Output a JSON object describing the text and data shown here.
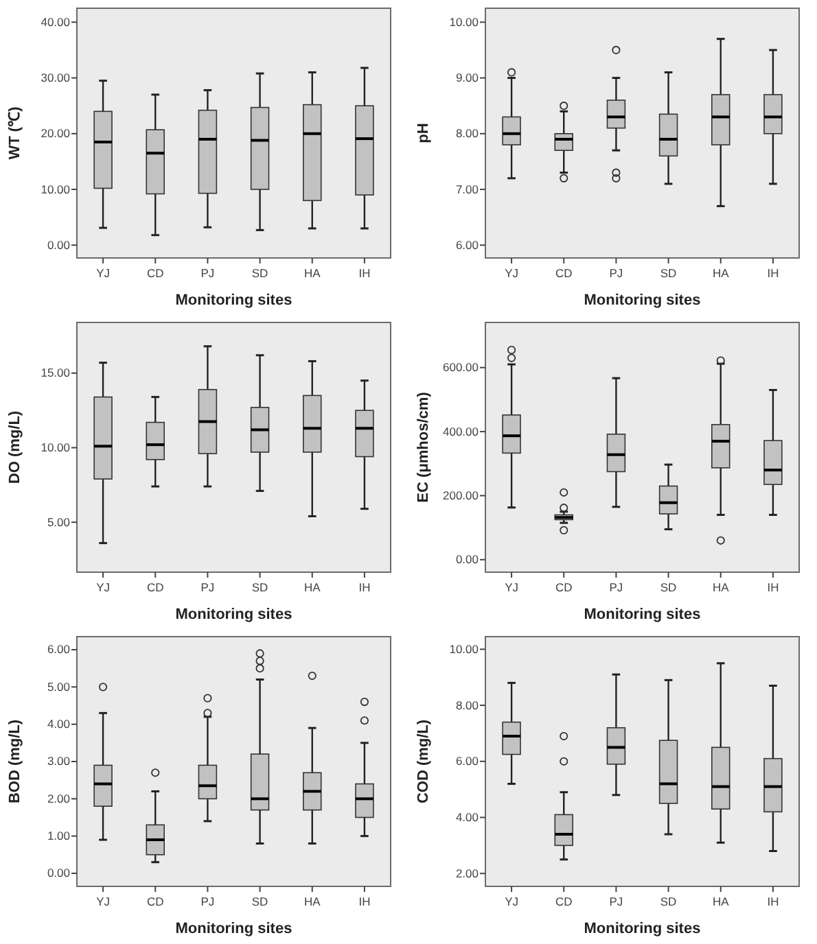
{
  "chart_data": [
    {
      "type": "box",
      "xlabel": "Monitoring sites",
      "ylabel": "WT (℃)",
      "categories": [
        "YJ",
        "CD",
        "PJ",
        "SD",
        "HA",
        "IH"
      ],
      "ylim": [
        -2.3,
        42.5
      ],
      "yticks": [
        {
          "value": 0,
          "label": "0.00"
        },
        {
          "value": 10,
          "label": "10.00"
        },
        {
          "value": 20,
          "label": "20.00"
        },
        {
          "value": 30,
          "label": "30.00"
        },
        {
          "value": 40,
          "label": "40.00"
        }
      ],
      "boxes": [
        {
          "low": 3.1,
          "q1": 10.2,
          "median": 18.5,
          "q3": 24,
          "high": 29.5
        },
        {
          "low": 1.8,
          "q1": 9.2,
          "median": 16.5,
          "q3": 20.7,
          "high": 27
        },
        {
          "low": 3.2,
          "q1": 9.3,
          "median": 19,
          "q3": 24.2,
          "high": 27.8
        },
        {
          "low": 2.7,
          "q1": 10,
          "median": 18.8,
          "q3": 24.7,
          "high": 30.8
        },
        {
          "low": 3,
          "q1": 8,
          "median": 20,
          "q3": 25.2,
          "high": 31
        },
        {
          "low": 3,
          "q1": 9,
          "median": 19.1,
          "q3": 25,
          "high": 31.8
        }
      ]
    },
    {
      "type": "box",
      "xlabel": "Monitoring sites",
      "ylabel": "pH",
      "categories": [
        "YJ",
        "CD",
        "PJ",
        "SD",
        "HA",
        "IH"
      ],
      "ylim": [
        5.77,
        10.25
      ],
      "yticks": [
        {
          "value": 6,
          "label": "6.00"
        },
        {
          "value": 7,
          "label": "7.00"
        },
        {
          "value": 8,
          "label": "8.00"
        },
        {
          "value": 9,
          "label": "9.00"
        },
        {
          "value": 10,
          "label": "10.00"
        }
      ],
      "boxes": [
        {
          "low": 7.2,
          "q1": 7.8,
          "median": 8,
          "q3": 8.3,
          "high": 9,
          "outliers": [
            9.1
          ]
        },
        {
          "low": 7.3,
          "q1": 7.7,
          "median": 7.9,
          "q3": 8,
          "high": 8.4,
          "outliers": [
            7.2,
            8.5
          ]
        },
        {
          "low": 7.7,
          "q1": 8.1,
          "median": 8.3,
          "q3": 8.6,
          "high": 9,
          "outliers": [
            9.5,
            7.3,
            7.2
          ]
        },
        {
          "low": 7.1,
          "q1": 7.6,
          "median": 7.9,
          "q3": 8.35,
          "high": 9.1
        },
        {
          "low": 6.7,
          "q1": 7.8,
          "median": 8.3,
          "q3": 8.7,
          "high": 9.7
        },
        {
          "low": 7.1,
          "q1": 8,
          "median": 8.3,
          "q3": 8.7,
          "high": 9.5
        }
      ]
    },
    {
      "type": "box",
      "xlabel": "Monitoring sites",
      "ylabel": "DO (mg/L)",
      "categories": [
        "YJ",
        "CD",
        "PJ",
        "SD",
        "HA",
        "IH"
      ],
      "ylim": [
        1.65,
        18.4
      ],
      "yticks": [
        {
          "value": 5,
          "label": "5.00"
        },
        {
          "value": 10,
          "label": "10.00"
        },
        {
          "value": 15,
          "label": "15.00"
        }
      ],
      "boxes": [
        {
          "low": 3.6,
          "q1": 7.9,
          "median": 10.1,
          "q3": 13.4,
          "high": 15.7
        },
        {
          "low": 7.4,
          "q1": 9.2,
          "median": 10.2,
          "q3": 11.7,
          "high": 13.4
        },
        {
          "low": 7.4,
          "q1": 9.6,
          "median": 11.75,
          "q3": 13.9,
          "high": 16.8
        },
        {
          "low": 7.1,
          "q1": 9.7,
          "median": 11.2,
          "q3": 12.7,
          "high": 16.2
        },
        {
          "low": 5.4,
          "q1": 9.7,
          "median": 11.3,
          "q3": 13.5,
          "high": 15.8
        },
        {
          "low": 5.9,
          "q1": 9.4,
          "median": 11.3,
          "q3": 12.5,
          "high": 14.5
        }
      ]
    },
    {
      "type": "box",
      "xlabel": "Monitoring sites",
      "ylabel": "EC (μmhos/cm)",
      "categories": [
        "YJ",
        "CD",
        "PJ",
        "SD",
        "HA",
        "IH"
      ],
      "ylim": [
        -39,
        741
      ],
      "yticks": [
        {
          "value": 0,
          "label": "0.00"
        },
        {
          "value": 200,
          "label": "200.00"
        },
        {
          "value": 400,
          "label": "400.00"
        },
        {
          "value": 600,
          "label": "600.00"
        }
      ],
      "boxes": [
        {
          "low": 163,
          "q1": 333,
          "median": 387,
          "q3": 452,
          "high": 610,
          "outliers": [
            630,
            655
          ]
        },
        {
          "low": 115,
          "q1": 125,
          "median": 132,
          "q3": 140,
          "high": 150,
          "outliers": [
            92,
            162,
            210
          ]
        },
        {
          "low": 165,
          "q1": 275,
          "median": 328,
          "q3": 392,
          "high": 567
        },
        {
          "low": 95,
          "q1": 143,
          "median": 178,
          "q3": 230,
          "high": 297
        },
        {
          "low": 140,
          "q1": 287,
          "median": 370,
          "q3": 422,
          "high": 612,
          "outliers": [
            622,
            60
          ]
        },
        {
          "low": 140,
          "q1": 235,
          "median": 280,
          "q3": 372,
          "high": 530
        }
      ]
    },
    {
      "type": "box",
      "xlabel": "Monitoring sites",
      "ylabel": "BOD (mg/L)",
      "categories": [
        "YJ",
        "CD",
        "PJ",
        "SD",
        "HA",
        "IH"
      ],
      "ylim": [
        -0.35,
        6.35
      ],
      "yticks": [
        {
          "value": 0,
          "label": "0.00"
        },
        {
          "value": 1,
          "label": "1.00"
        },
        {
          "value": 2,
          "label": "2.00"
        },
        {
          "value": 3,
          "label": "3.00"
        },
        {
          "value": 4,
          "label": "4.00"
        },
        {
          "value": 5,
          "label": "5.00"
        },
        {
          "value": 6,
          "label": "6.00"
        }
      ],
      "boxes": [
        {
          "low": 0.9,
          "q1": 1.8,
          "median": 2.4,
          "q3": 2.9,
          "high": 4.3,
          "outliers": [
            5
          ]
        },
        {
          "low": 0.3,
          "q1": 0.5,
          "median": 0.9,
          "q3": 1.3,
          "high": 2.2,
          "outliers": [
            2.7
          ]
        },
        {
          "low": 1.4,
          "q1": 2,
          "median": 2.35,
          "q3": 2.9,
          "high": 4.2,
          "outliers": [
            4.3,
            4.7
          ]
        },
        {
          "low": 0.8,
          "q1": 1.7,
          "median": 2,
          "q3": 3.2,
          "high": 5.2,
          "outliers": [
            5.5,
            5.7,
            5.9
          ]
        },
        {
          "low": 0.8,
          "q1": 1.7,
          "median": 2.2,
          "q3": 2.7,
          "high": 3.9,
          "outliers": [
            5.3
          ]
        },
        {
          "low": 1,
          "q1": 1.5,
          "median": 2,
          "q3": 2.4,
          "high": 3.5,
          "outliers": [
            4.1,
            4.6
          ]
        }
      ]
    },
    {
      "type": "box",
      "xlabel": "Monitoring sites",
      "ylabel": "COD (mg/L)",
      "categories": [
        "YJ",
        "CD",
        "PJ",
        "SD",
        "HA",
        "IH"
      ],
      "ylim": [
        1.54,
        10.45
      ],
      "yticks": [
        {
          "value": 2,
          "label": "2.00"
        },
        {
          "value": 4,
          "label": "4.00"
        },
        {
          "value": 6,
          "label": "6.00"
        },
        {
          "value": 8,
          "label": "8.00"
        },
        {
          "value": 10,
          "label": "10.00"
        }
      ],
      "boxes": [
        {
          "low": 5.2,
          "q1": 6.25,
          "median": 6.9,
          "q3": 7.4,
          "high": 8.8
        },
        {
          "low": 2.5,
          "q1": 3,
          "median": 3.4,
          "q3": 4.1,
          "high": 4.9,
          "outliers": [
            6,
            6.9
          ]
        },
        {
          "low": 4.8,
          "q1": 5.9,
          "median": 6.5,
          "q3": 7.2,
          "high": 9.1
        },
        {
          "low": 3.4,
          "q1": 4.5,
          "median": 5.2,
          "q3": 6.75,
          "high": 8.9
        },
        {
          "low": 3.1,
          "q1": 4.3,
          "median": 5.1,
          "q3": 6.5,
          "high": 9.5
        },
        {
          "low": 2.8,
          "q1": 4.2,
          "median": 5.1,
          "q3": 6.1,
          "high": 8.7
        }
      ]
    }
  ]
}
